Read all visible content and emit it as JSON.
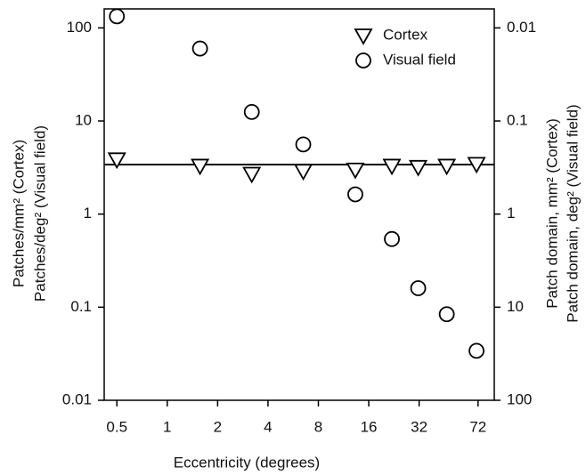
{
  "chart_data": {
    "type": "scatter",
    "x_label": "Eccentricity (degrees)",
    "y_label_lines": [
      "Patches/mm² (Cortex)",
      "Patches/deg² (Visual field)"
    ],
    "y2_label_lines": [
      "Patch domain, mm² (Cortex)",
      "Patch domain, deg² (Visual field)"
    ],
    "xscale": "log",
    "yscale": "log",
    "y2scale": "log",
    "xlim": [
      0.42,
      90
    ],
    "ylim": [
      0.01,
      160
    ],
    "y2lim": [
      100,
      0.00625
    ],
    "xticks": [
      0.5,
      1,
      2,
      4,
      8,
      16,
      32,
      72
    ],
    "yticks": [
      0.01,
      0.1,
      1,
      10,
      100
    ],
    "y2ticks": [
      0.01,
      0.1,
      1,
      10,
      100
    ],
    "legend": "upper right",
    "series": [
      {
        "name": "Cortex",
        "marker": "triangle-down",
        "color": "#000000",
        "x": [
          0.5,
          1.57,
          3.2,
          6.5,
          13.3,
          22,
          31.6,
          46.8,
          70.5
        ],
        "values": [
          3.86,
          3.3,
          2.7,
          2.9,
          3.0,
          3.3,
          3.2,
          3.3,
          3.45
        ]
      },
      {
        "name": "Visual field",
        "marker": "circle",
        "color": "#000000",
        "x": [
          0.5,
          1.57,
          3.2,
          6.5,
          13.3,
          22,
          31.6,
          46.8,
          70.5
        ],
        "values": [
          133,
          60,
          12.5,
          5.6,
          1.63,
          0.54,
          0.16,
          0.084,
          0.034
        ]
      }
    ],
    "reference_line": {
      "color": "#000000",
      "x": [
        0.42,
        90
      ],
      "values": [
        3.4,
        3.4
      ]
    }
  }
}
